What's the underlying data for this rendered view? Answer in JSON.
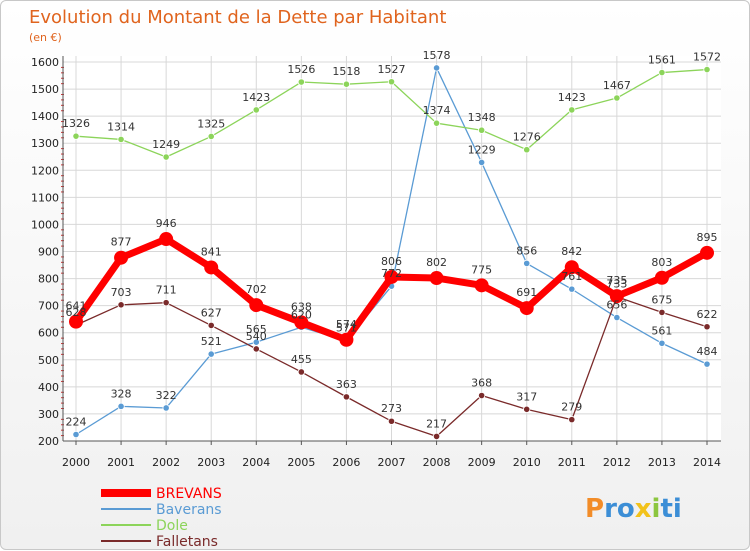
{
  "chart_data": {
    "type": "line",
    "title": "Evolution du Montant de la Dette par Habitant",
    "subtitle": "(en €)",
    "x": [
      "2000",
      "2001",
      "2002",
      "2003",
      "2004",
      "2005",
      "2006",
      "2007",
      "2008",
      "2009",
      "2010",
      "2011",
      "2012",
      "2013",
      "2014"
    ],
    "ylim": [
      200,
      1600
    ],
    "yticks": [
      200,
      300,
      400,
      500,
      600,
      700,
      800,
      900,
      1000,
      1100,
      1200,
      1300,
      1400,
      1500,
      1600
    ],
    "grid": true,
    "legend_position": "bottom-left",
    "series": [
      {
        "name": "BREVANS",
        "color": "#ff0000",
        "values": [
          641,
          877,
          946,
          841,
          702,
          638,
          574,
          806,
          802,
          775,
          691,
          842,
          735,
          803,
          895
        ]
      },
      {
        "name": "Baverans",
        "color": "#5a9bd4",
        "values": [
          224,
          328,
          322,
          521,
          565,
          620,
          571,
          772,
          1578,
          1229,
          856,
          761,
          656,
          561,
          484
        ]
      },
      {
        "name": "Dole",
        "color": "#8cd45a",
        "values": [
          1326,
          1314,
          1249,
          1325,
          1423,
          1526,
          1518,
          1527,
          1374,
          1348,
          1276,
          1423,
          1467,
          1561,
          1572
        ]
      },
      {
        "name": "Falletans",
        "color": "#7a2a2a",
        "values": [
          628,
          703,
          711,
          627,
          540,
          455,
          363,
          273,
          217,
          368,
          317,
          279,
          733,
          675,
          622
        ]
      }
    ]
  },
  "logo": {
    "letters": [
      "P",
      "r",
      "o",
      "x",
      "i",
      "t",
      "i"
    ],
    "colors": [
      "#f28c28",
      "#3c8ed6",
      "#3c8ed6",
      "#f2c21b",
      "#8cc63f",
      "#3c8ed6",
      "#3c8ed6"
    ]
  }
}
